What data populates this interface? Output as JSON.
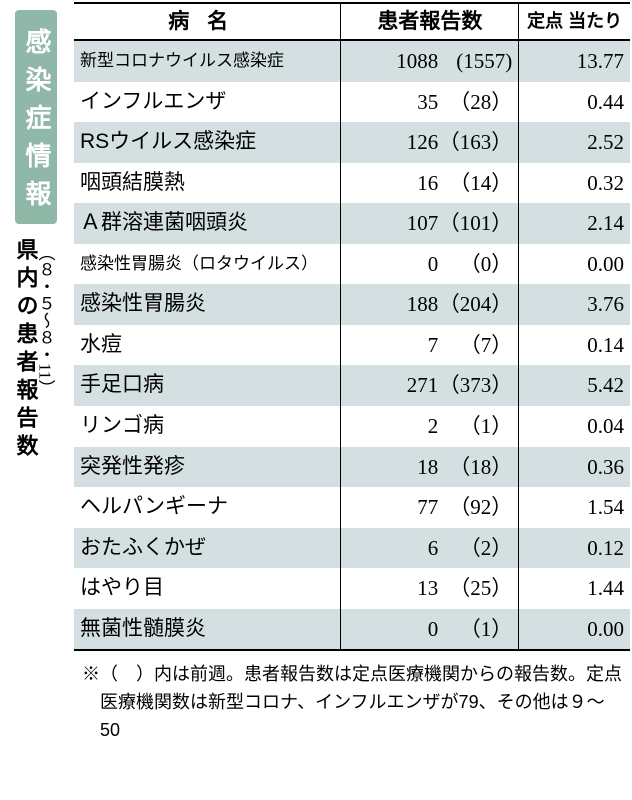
{
  "title": "感染症情報",
  "subtitle": "県内の患者報告数",
  "period": "（８・５〜８・11）",
  "columns": {
    "name": "病名",
    "count": "患者報告数",
    "per": "定点\n当たり"
  },
  "colors": {
    "title_bg": "#8fb8a8",
    "title_fg": "#ffffff",
    "shade_bg": "#d3dfe0",
    "border": "#000000",
    "background": "#ffffff"
  },
  "rows": [
    {
      "name": "新型コロナウイルス感染症",
      "current": "1088",
      "prev": "(1557)",
      "per": "13.77",
      "shade": true,
      "small": true
    },
    {
      "name": "インフルエンザ",
      "current": "35",
      "prev": "（28）",
      "per": "0.44",
      "shade": false
    },
    {
      "name": "RSウイルス感染症",
      "current": "126",
      "prev": "（163）",
      "per": "2.52",
      "shade": true
    },
    {
      "name": "咽頭結膜熱",
      "current": "16",
      "prev": "（14）",
      "per": "0.32",
      "shade": false
    },
    {
      "name": "Ａ群溶連菌咽頭炎",
      "current": "107",
      "prev": "（101）",
      "per": "2.14",
      "shade": true
    },
    {
      "name": "感染性胃腸炎（ロタウイルス）",
      "current": "0",
      "prev": "（0）",
      "per": "0.00",
      "shade": false,
      "small": true
    },
    {
      "name": "感染性胃腸炎",
      "current": "188",
      "prev": "（204）",
      "per": "3.76",
      "shade": true
    },
    {
      "name": "水痘",
      "current": "7",
      "prev": "（7）",
      "per": "0.14",
      "shade": false
    },
    {
      "name": "手足口病",
      "current": "271",
      "prev": "（373）",
      "per": "5.42",
      "shade": true
    },
    {
      "name": "リンゴ病",
      "current": "2",
      "prev": "（1）",
      "per": "0.04",
      "shade": false
    },
    {
      "name": "突発性発疹",
      "current": "18",
      "prev": "（18）",
      "per": "0.36",
      "shade": true
    },
    {
      "name": "ヘルパンギーナ",
      "current": "77",
      "prev": "（92）",
      "per": "1.54",
      "shade": false
    },
    {
      "name": "おたふくかぜ",
      "current": "6",
      "prev": "（2）",
      "per": "0.12",
      "shade": true
    },
    {
      "name": "はやり目",
      "current": "13",
      "prev": "（25）",
      "per": "1.44",
      "shade": false
    },
    {
      "name": "無菌性髄膜炎",
      "current": "0",
      "prev": "（1）",
      "per": "0.00",
      "shade": true
    }
  ],
  "footnote": "※（　）内は前週。患者報告数は定点医療機関からの報告数。定点医療機関数は新型コロナ、インフルエンザが79、その他は９〜50"
}
